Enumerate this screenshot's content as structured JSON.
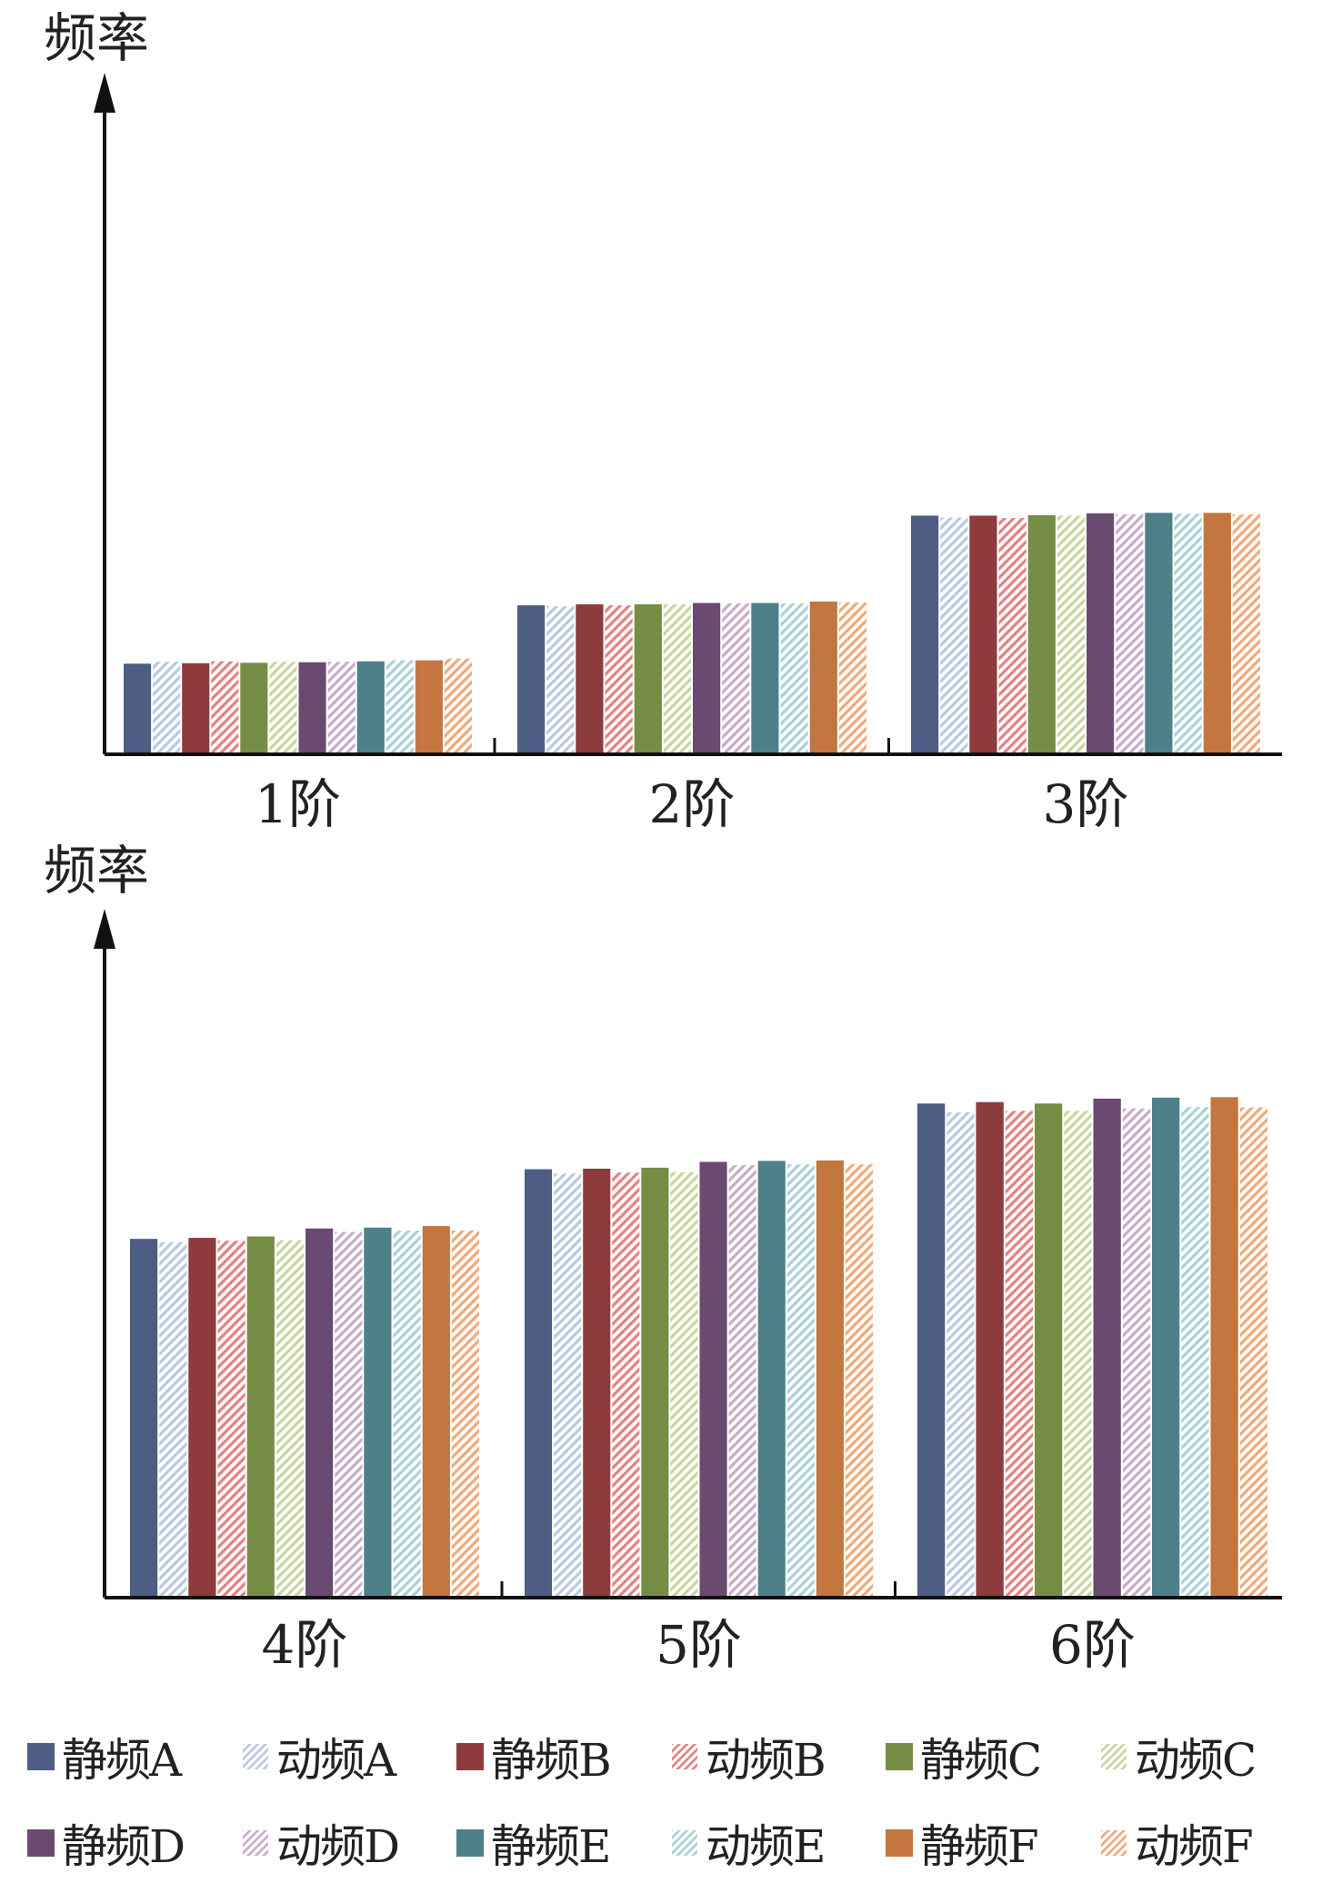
{
  "chart_data": [
    {
      "type": "bar",
      "ylabel": "频率",
      "xlabel": "",
      "title": "",
      "ylim": [
        0,
        100
      ],
      "categories": [
        "1阶",
        "2阶",
        "3阶"
      ],
      "series": [
        {
          "name": "静频A",
          "values": [
            19.1,
            31.4,
            50.3
          ]
        },
        {
          "name": "动频A",
          "values": [
            19.5,
            31.2,
            49.9
          ]
        },
        {
          "name": "静频B",
          "values": [
            19.2,
            31.6,
            50.3
          ]
        },
        {
          "name": "动频B",
          "values": [
            19.6,
            31.4,
            49.8
          ]
        },
        {
          "name": "静频C",
          "values": [
            19.3,
            31.6,
            50.4
          ]
        },
        {
          "name": "动频C",
          "values": [
            19.5,
            31.6,
            50.3
          ]
        },
        {
          "name": "静频D",
          "values": [
            19.4,
            31.9,
            50.8
          ]
        },
        {
          "name": "动频D",
          "values": [
            19.5,
            31.8,
            50.6
          ]
        },
        {
          "name": "静频E",
          "values": [
            19.6,
            31.9,
            50.9
          ]
        },
        {
          "name": "动频E",
          "values": [
            19.8,
            31.8,
            50.7
          ]
        },
        {
          "name": "静频F",
          "values": [
            19.8,
            32.2,
            50.9
          ]
        },
        {
          "name": "动频F",
          "values": [
            20.2,
            32.0,
            50.6
          ]
        }
      ]
    },
    {
      "type": "bar",
      "ylabel": "频率",
      "xlabel": "",
      "title": "",
      "ylim": [
        0,
        100
      ],
      "categories": [
        "4阶",
        "5阶",
        "6阶"
      ],
      "series": [
        {
          "name": "静频A",
          "values": [
            73.2,
            87.4,
            100.8
          ]
        },
        {
          "name": "动频A",
          "values": [
            72.5,
            86.5,
            99.0
          ]
        },
        {
          "name": "静频B",
          "values": [
            73.4,
            87.5,
            101.1
          ]
        },
        {
          "name": "动频B",
          "values": [
            72.8,
            86.7,
            99.3
          ]
        },
        {
          "name": "静频C",
          "values": [
            73.7,
            87.7,
            100.8
          ]
        },
        {
          "name": "动频C",
          "values": [
            72.9,
            86.8,
            99.3
          ]
        },
        {
          "name": "静频D",
          "values": [
            75.3,
            88.9,
            101.8
          ]
        },
        {
          "name": "动频D",
          "values": [
            74.6,
            88.2,
            99.8
          ]
        },
        {
          "name": "静频E",
          "values": [
            75.5,
            89.1,
            102.0
          ]
        },
        {
          "name": "动频E",
          "values": [
            74.9,
            88.4,
            100.1
          ]
        },
        {
          "name": "静频F",
          "values": [
            75.8,
            89.2,
            102.1
          ]
        },
        {
          "name": "动频F",
          "values": [
            74.9,
            88.4,
            100.0
          ]
        }
      ]
    }
  ],
  "colors": {
    "静频A": "#4d5d83",
    "动频A": "#b8c8e0",
    "静频B": "#8e3b3d",
    "动频B": "#e5807e",
    "静频C": "#768d45",
    "动频C": "#c8d59d",
    "静频D": "#6b4a72",
    "动频D": "#c8aac8",
    "静频E": "#4e8089",
    "动频E": "#a8d1d6",
    "静频F": "#c37640",
    "动频F": "#f2a878",
    "axis": "#111111"
  },
  "legend": {
    "position": "bottom",
    "items": [
      "静频A",
      "动频A",
      "静频B",
      "动频B",
      "静频C",
      "动频C",
      "静频D",
      "动频D",
      "静频E",
      "动频E",
      "静频F",
      "动频F"
    ]
  }
}
